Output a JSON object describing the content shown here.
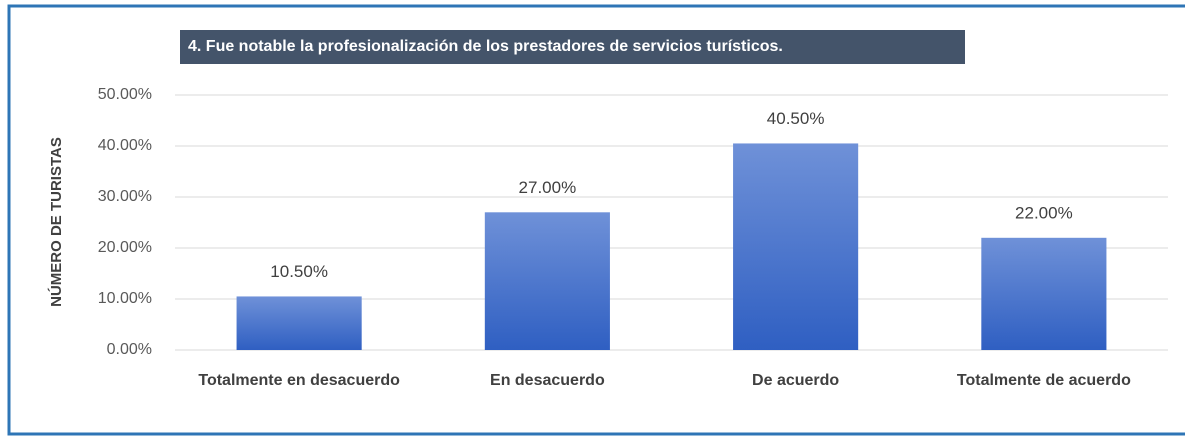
{
  "chart_data": {
    "type": "bar",
    "title": "4. Fue notable la profesionalización de los prestadores de servicios turísticos.",
    "ylabel": "NÚMERO DE TURISTAS",
    "categories": [
      "Totalmente en desacuerdo",
      "En desacuerdo",
      "De acuerdo",
      "Totalmente de acuerdo"
    ],
    "values": [
      10.5,
      27,
      40.5,
      22
    ],
    "value_labels": [
      "10.50%",
      "27.00%",
      "40.50%",
      "22.00%"
    ],
    "color": "#4472c4",
    "ylim": [
      0,
      50
    ],
    "yticks": [
      {
        "value": 0,
        "label": "0.00%"
      },
      {
        "value": 10,
        "label": "10.00%"
      },
      {
        "value": 20,
        "label": "20.00%"
      },
      {
        "value": 30,
        "label": "30.00%"
      },
      {
        "value": 40,
        "label": "40.00%"
      },
      {
        "value": 50,
        "label": "50.00%"
      }
    ],
    "grid": true
  }
}
